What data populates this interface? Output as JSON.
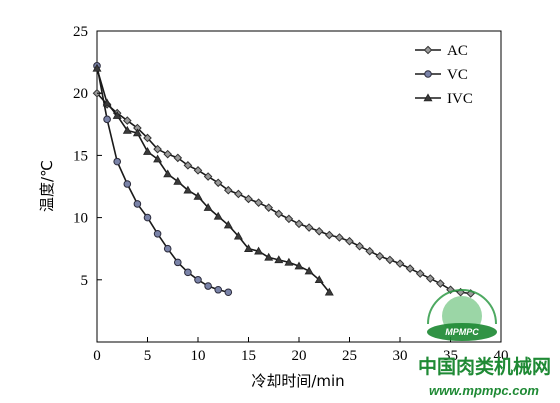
{
  "chart_data": {
    "type": "line",
    "xlabel": "冷却时间/min",
    "ylabel": "温度/℃",
    "xlim": [
      0,
      40
    ],
    "ylim": [
      0,
      25
    ],
    "x_ticks": [
      0,
      5,
      10,
      15,
      20,
      25,
      30,
      35,
      40
    ],
    "y_ticks": [
      5,
      10,
      15,
      20,
      25
    ],
    "grid": false,
    "legend_position": "top-right",
    "series": [
      {
        "name": "AC",
        "marker": "diamond",
        "x": [
          0,
          1,
          2,
          3,
          4,
          5,
          6,
          7,
          8,
          9,
          10,
          11,
          12,
          13,
          14,
          15,
          16,
          17,
          18,
          19,
          20,
          21,
          22,
          23,
          24,
          25,
          26,
          27,
          28,
          29,
          30,
          31,
          32,
          33,
          34,
          35,
          36,
          37
        ],
        "y": [
          20.0,
          19.1,
          18.4,
          17.8,
          17.2,
          16.4,
          15.5,
          15.1,
          14.8,
          14.2,
          13.8,
          13.3,
          12.8,
          12.2,
          11.9,
          11.5,
          11.2,
          10.8,
          10.3,
          9.9,
          9.5,
          9.2,
          8.9,
          8.6,
          8.4,
          8.1,
          7.7,
          7.3,
          6.9,
          6.6,
          6.3,
          5.9,
          5.5,
          5.1,
          4.7,
          4.2,
          4.0,
          3.9
        ]
      },
      {
        "name": "VC",
        "marker": "circle",
        "x": [
          0,
          1,
          2,
          3,
          4,
          5,
          6,
          7,
          8,
          9,
          10,
          11,
          12,
          13
        ],
        "y": [
          22.2,
          17.9,
          14.5,
          12.7,
          11.1,
          10.0,
          8.7,
          7.5,
          6.4,
          5.6,
          5.0,
          4.5,
          4.2,
          4.0
        ]
      },
      {
        "name": "IVC",
        "marker": "triangle",
        "x": [
          0,
          1,
          2,
          3,
          4,
          5,
          6,
          7,
          8,
          9,
          10,
          11,
          12,
          13,
          14,
          15,
          16,
          17,
          18,
          19,
          20,
          21,
          22,
          23
        ],
        "y": [
          22.0,
          19.2,
          18.2,
          17.0,
          16.8,
          15.3,
          14.7,
          13.5,
          12.9,
          12.2,
          11.7,
          10.8,
          10.1,
          9.4,
          8.5,
          7.5,
          7.3,
          6.8,
          6.6,
          6.4,
          6.1,
          5.7,
          5.0,
          4.0
        ]
      }
    ]
  },
  "watermark": {
    "logo_text": "MPMPC",
    "site_name": "中国肉类机械网",
    "url": "www.mpmpc.com",
    "color": "#1f8a35"
  }
}
